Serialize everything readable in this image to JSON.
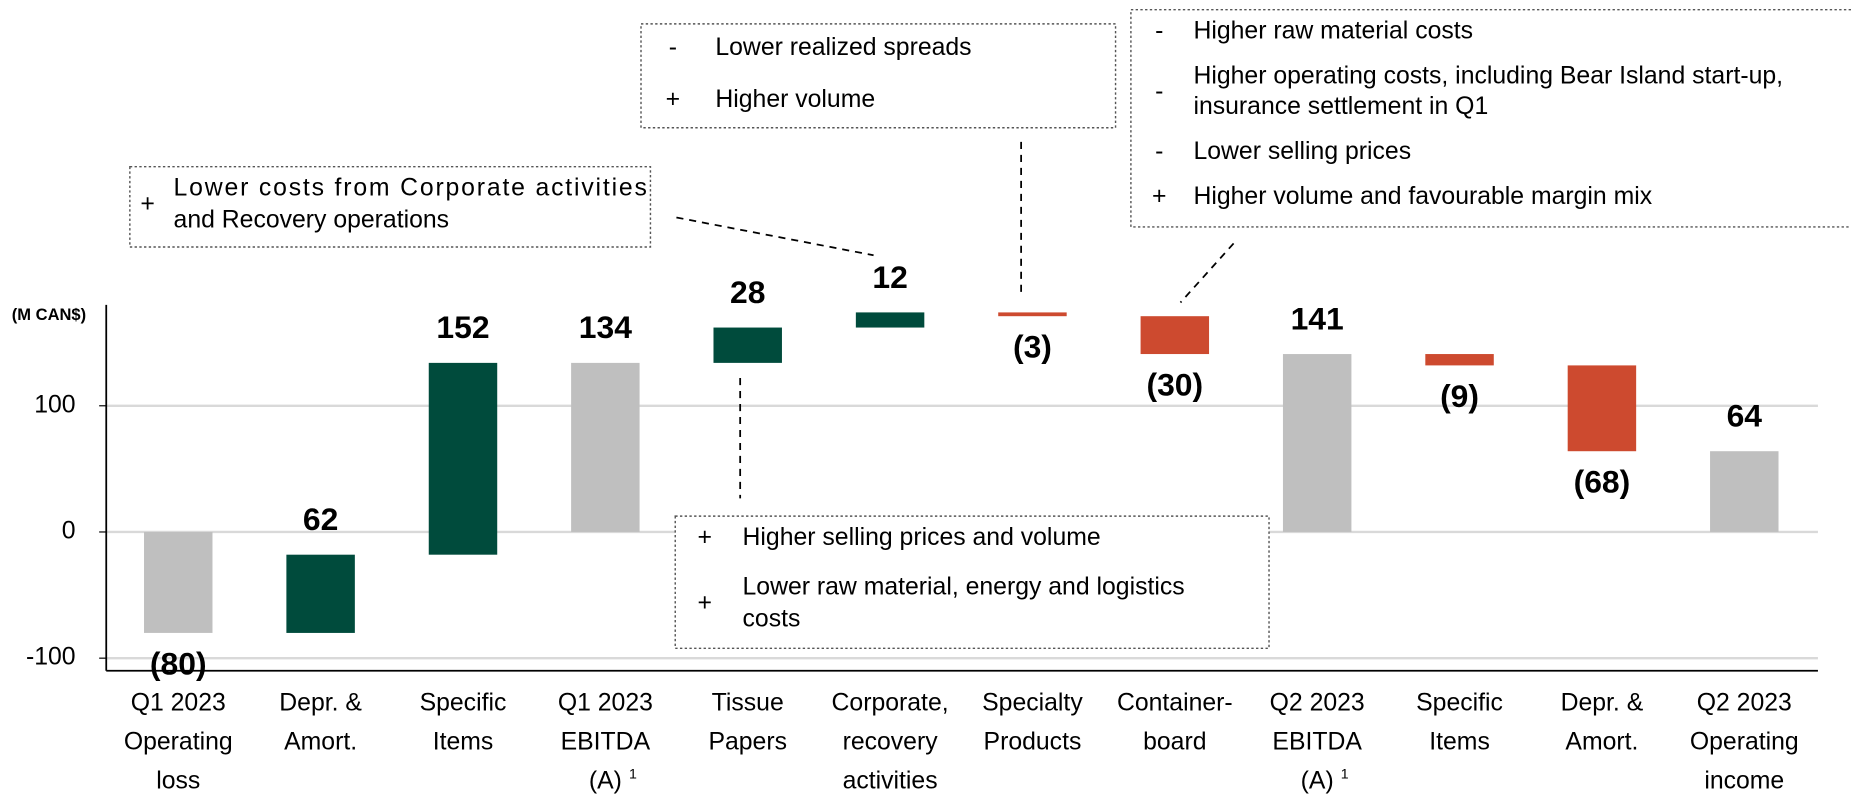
{
  "chart_data": {
    "type": "waterfall",
    "y_axis_label": "(M CAN$)",
    "categories": [
      [
        "Q1 2023",
        "Operating",
        "loss"
      ],
      [
        "Depr. &",
        "Amort."
      ],
      [
        "Specific",
        "Items"
      ],
      [
        "Q1 2023",
        "EBITDA",
        "(A)"
      ],
      [
        "Tissue",
        "Papers"
      ],
      [
        "Corporate,",
        "recovery",
        "activities"
      ],
      [
        "Specialty",
        "Products"
      ],
      [
        "Container-",
        "board"
      ],
      [
        "Q2 2023",
        "EBITDA",
        "(A)"
      ],
      [
        "Specific",
        "Items"
      ],
      [
        "Depr. &",
        "Amort."
      ],
      [
        "Q2 2023",
        "Operating",
        "income"
      ]
    ],
    "category_superscripts": [
      null,
      null,
      null,
      "1",
      null,
      null,
      null,
      null,
      "1",
      null,
      null,
      null
    ],
    "values": [
      -80,
      62,
      152,
      134,
      28,
      12,
      -3,
      -30,
      141,
      -9,
      -68,
      64
    ],
    "value_labels": [
      "(80)",
      "62",
      "152",
      "134",
      "28",
      "12",
      "(3)",
      "(30)",
      "141",
      "(9)",
      "(68)",
      "64"
    ],
    "bar_kinds": [
      "total",
      "delta",
      "delta",
      "total",
      "delta",
      "delta",
      "delta",
      "delta",
      "total",
      "delta",
      "delta",
      "total"
    ],
    "colors": {
      "total": "#bfbfbf",
      "increase": "#004b3c",
      "decrease": "#cd4a2f"
    },
    "ylim": [
      -110,
      180
    ],
    "yticks": [
      -100,
      0,
      100
    ],
    "grid": true,
    "annotations": [
      {
        "items": [
          {
            "bullet": "+",
            "lines": [
              "Lower costs from Corporate activities",
              "and Recovery operations"
            ]
          }
        ]
      },
      {
        "items": [
          {
            "bullet": "-",
            "lines": [
              "Lower realized spreads"
            ]
          },
          {
            "bullet": "+",
            "lines": [
              "Higher volume"
            ]
          }
        ]
      },
      {
        "items": [
          {
            "bullet": "-",
            "lines": [
              "Higher raw material costs"
            ]
          },
          {
            "bullet": "-",
            "lines": [
              "Higher operating costs, including Bear Island start-up,",
              "insurance settlement in Q1"
            ]
          },
          {
            "bullet": "-",
            "lines": [
              "Lower selling prices"
            ]
          },
          {
            "bullet": "+",
            "lines": [
              "Higher volume and favourable margin mix"
            ]
          }
        ]
      },
      {
        "items": [
          {
            "bullet": "+",
            "lines": [
              "Higher selling prices and volume"
            ]
          },
          {
            "bullet": "+",
            "lines": [
              "Lower raw material, energy and logistics",
              "costs"
            ]
          }
        ]
      }
    ]
  }
}
